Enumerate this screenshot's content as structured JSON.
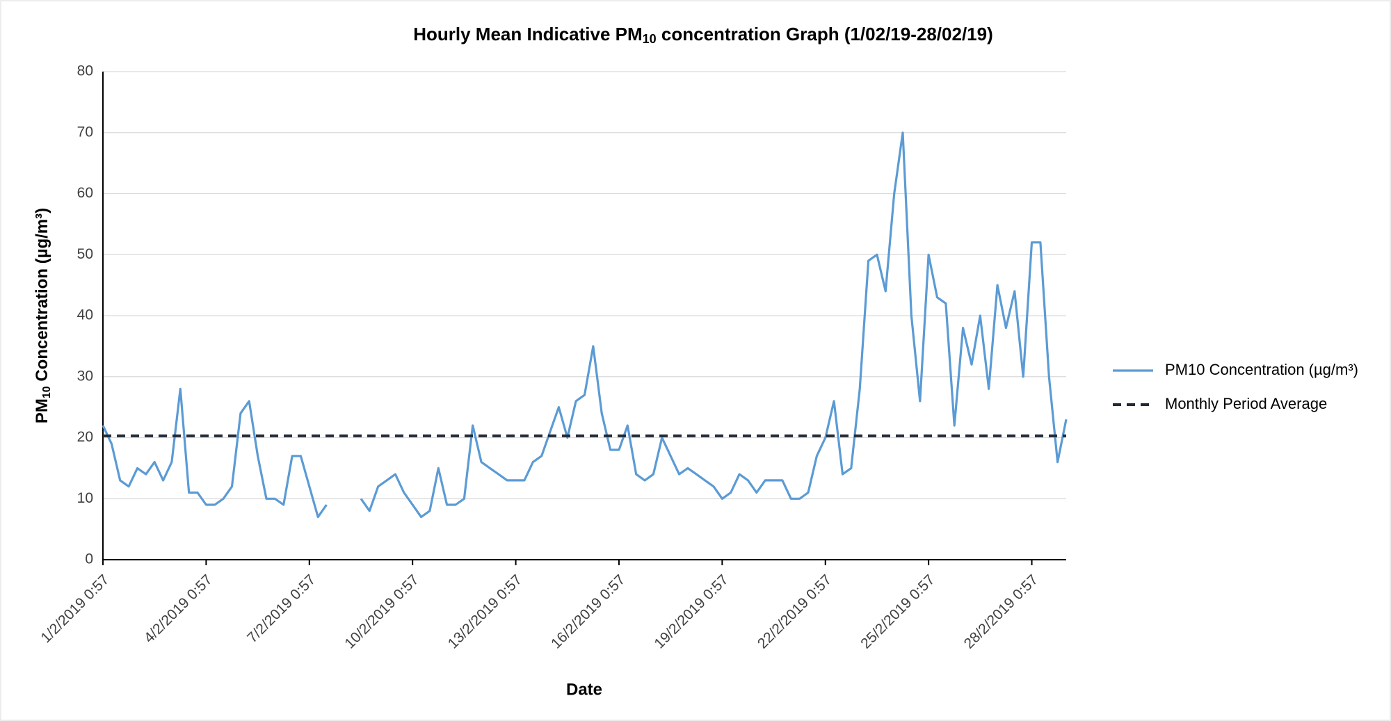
{
  "chart_data": {
    "type": "line",
    "title": [
      "Hourly Mean Indicative PM",
      "10",
      " concentration Graph (1/02/19-28/02/19)"
    ],
    "x_label": "Date",
    "y_label": [
      "PM",
      "10",
      " Concentration (µg/m³)"
    ],
    "categories": [
      "1/2/2019 0:57",
      null,
      null,
      null,
      null,
      null,
      null,
      null,
      null,
      null,
      null,
      null,
      "4/2/2019 0:57",
      null,
      null,
      null,
      null,
      null,
      null,
      null,
      null,
      null,
      null,
      null,
      "7/2/2019 0:57",
      null,
      null,
      null,
      null,
      null,
      null,
      null,
      null,
      null,
      null,
      null,
      "10/2/2019 0:57",
      null,
      null,
      null,
      null,
      null,
      null,
      null,
      null,
      null,
      null,
      null,
      "13/2/2019 0:57",
      null,
      null,
      null,
      null,
      null,
      null,
      null,
      null,
      null,
      null,
      null,
      "16/2/2019 0:57",
      null,
      null,
      null,
      null,
      null,
      null,
      null,
      null,
      null,
      null,
      null,
      "19/2/2019 0:57",
      null,
      null,
      null,
      null,
      null,
      null,
      null,
      null,
      null,
      null,
      null,
      "22/2/2019 0:57",
      null,
      null,
      null,
      null,
      null,
      null,
      null,
      null,
      null,
      null,
      null,
      "25/2/2019 0:57",
      null,
      null,
      null,
      null,
      null,
      null,
      null,
      null,
      null,
      null,
      null,
      "28/2/2019 0:57",
      null,
      null,
      null,
      null
    ],
    "series": [
      {
        "name": "PM10 Concentration (µg/m³)",
        "color": "#5b9bd5",
        "values": [
          22,
          19,
          13,
          12,
          15,
          14,
          16,
          13,
          16,
          28,
          11,
          11,
          9,
          9,
          10,
          12,
          24,
          26,
          17,
          10,
          10,
          9,
          17,
          17,
          12,
          7,
          9,
          null,
          null,
          null,
          10,
          8,
          12,
          13,
          14,
          11,
          9,
          7,
          8,
          15,
          9,
          9,
          10,
          22,
          16,
          15,
          14,
          13,
          13,
          13,
          16,
          17,
          21,
          25,
          20,
          26,
          27,
          35,
          24,
          18,
          18,
          22,
          14,
          13,
          14,
          20,
          17,
          14,
          15,
          14,
          13,
          12,
          10,
          11,
          14,
          13,
          11,
          13,
          13,
          13,
          10,
          10,
          11,
          17,
          20,
          26,
          14,
          15,
          28,
          49,
          50,
          44,
          60,
          70,
          40,
          26,
          50,
          43,
          42,
          22,
          38,
          32,
          40,
          28,
          45,
          38,
          44,
          30,
          52,
          52,
          30,
          16,
          23
        ]
      }
    ],
    "reference_lines": [
      {
        "name": "Monthly Period Average",
        "color": "#222a35",
        "value": 20.3,
        "dashed": true
      }
    ],
    "ylim": [
      0,
      80
    ],
    "yticks": [
      0,
      10,
      20,
      30,
      40,
      50,
      60,
      70,
      80
    ],
    "grid": true,
    "legend": "right"
  }
}
